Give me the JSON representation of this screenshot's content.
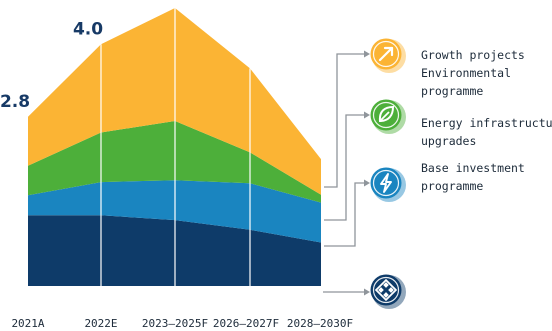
{
  "chart_data": {
    "type": "area",
    "stacked": true,
    "categories": [
      "2021A",
      "2022E",
      "2023–2025F",
      "2026–2027F",
      "2028–2030F"
    ],
    "value_labels": [
      {
        "category": "2021A",
        "text": "2.8"
      },
      {
        "category": "2022E",
        "text": "4.0"
      }
    ],
    "ylim": [
      0,
      4.6
    ],
    "grid": false,
    "legend_position": "right",
    "series": [
      {
        "key": "base",
        "color": "#0e3b69",
        "values": [
          1.17,
          1.17,
          1.09,
          0.93,
          0.72
        ]
      },
      {
        "key": "base_investment",
        "label_lines": [
          "Base investment",
          "programme"
        ],
        "color": "#1a85c0",
        "icon": "lightning-icon",
        "values": [
          0.33,
          0.55,
          0.66,
          0.77,
          0.66
        ]
      },
      {
        "key": "energy_infrastructure",
        "label_lines": [
          "Energy infrastructure",
          "upgrades"
        ],
        "color": "#4daf3a",
        "icon": "leaf-icon",
        "values": [
          0.49,
          0.82,
          0.98,
          0.51,
          0.13
        ]
      },
      {
        "key": "growth_projects",
        "label_lines": [
          "Growth projects",
          "Environmental",
          "programme"
        ],
        "color": "#fbb434",
        "icon": "arrow-up-right-icon",
        "values": [
          0.81,
          1.46,
          1.87,
          1.39,
          0.59
        ]
      }
    ]
  }
}
